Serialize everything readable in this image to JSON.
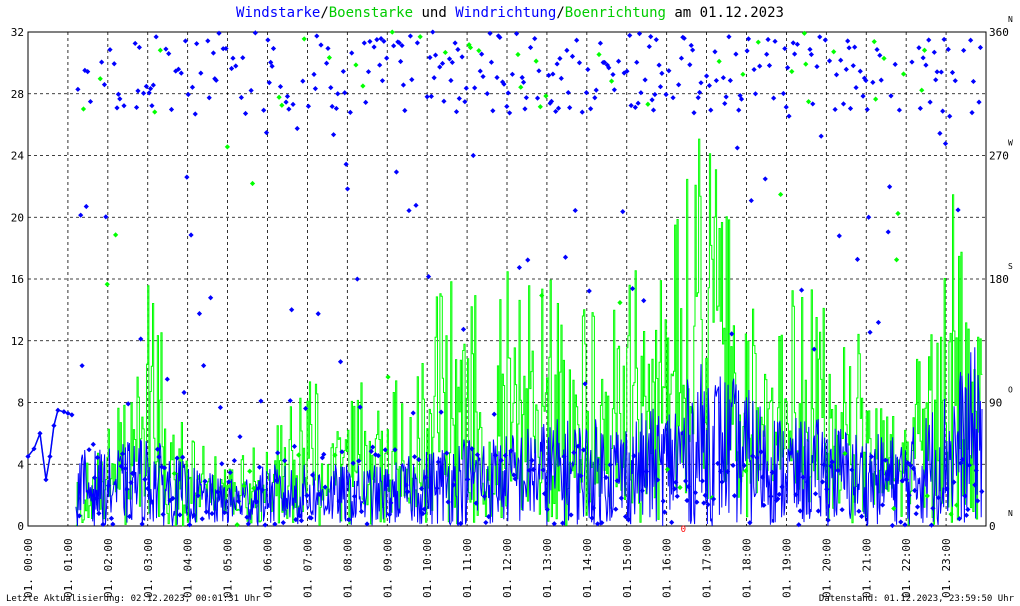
{
  "chart_data": {
    "type": "line",
    "title_parts": [
      {
        "text": "Windstarke",
        "color": "#0000ff"
      },
      {
        "text": "/",
        "color": "#000000"
      },
      {
        "text": "Boenstarke",
        "color": "#00cc00"
      },
      {
        "text": " und ",
        "color": "#000000"
      },
      {
        "text": "Windrichtung",
        "color": "#0000ff"
      },
      {
        "text": "/",
        "color": "#000000"
      },
      {
        "text": "Boenrichtung",
        "color": "#00cc00"
      },
      {
        "text": " am 01.12.2023",
        "color": "#000000"
      }
    ],
    "y_left": {
      "min": 0,
      "max": 32,
      "ticks": [
        "0",
        "4",
        "8",
        "12",
        "16",
        "20",
        "24",
        "28",
        "32"
      ]
    },
    "y_right": {
      "min": 0,
      "max": 360,
      "ticks": [
        "0",
        "90",
        "180",
        "270",
        "360"
      ],
      "compass": [
        "N",
        "O",
        "S",
        "W",
        "N"
      ]
    },
    "x_ticks": [
      "01. 00:00",
      "01. 01:00",
      "01. 02:00",
      "01. 03:00",
      "01. 04:00",
      "01. 05:00",
      "01. 06:00",
      "01. 07:00",
      "01. 08:00",
      "01. 09:00",
      "01. 10:00",
      "01. 11:00",
      "01. 12:00",
      "01. 13:00",
      "01. 14:00",
      "01. 15:00",
      "01. 16:00",
      "01. 17:00",
      "01. 18:00",
      "01. 19:00",
      "01. 20:00",
      "01. 21:00",
      "01. 22:00",
      "01. 23:00"
    ],
    "grid": true,
    "colors": {
      "wind": "#0000ff",
      "gust": "#00ff00",
      "marker": "#ff0000"
    },
    "gust_envelope": [
      [
        1.2,
        4
      ],
      [
        1.8,
        6
      ],
      [
        2.2,
        7.5
      ],
      [
        2.8,
        10
      ],
      [
        3.0,
        18
      ],
      [
        3.5,
        10
      ],
      [
        4.0,
        6
      ],
      [
        4.5,
        5
      ],
      [
        5.0,
        4
      ],
      [
        5.5,
        5
      ],
      [
        6.0,
        6
      ],
      [
        6.5,
        8
      ],
      [
        7.0,
        10
      ],
      [
        7.5,
        8
      ],
      [
        8.0,
        10
      ],
      [
        8.5,
        9
      ],
      [
        9.0,
        9
      ],
      [
        9.5,
        10
      ],
      [
        10.0,
        13
      ],
      [
        10.5,
        18
      ],
      [
        11.0,
        17
      ],
      [
        11.5,
        16
      ],
      [
        12.0,
        18
      ],
      [
        12.5,
        16
      ],
      [
        13.0,
        17
      ],
      [
        13.5,
        15
      ],
      [
        14.0,
        14
      ],
      [
        14.5,
        17
      ],
      [
        15.0,
        18
      ],
      [
        15.5,
        19
      ],
      [
        16.0,
        20
      ],
      [
        16.5,
        23
      ],
      [
        16.8,
        26
      ],
      [
        17.0,
        28
      ],
      [
        17.3,
        22
      ],
      [
        17.6,
        21
      ],
      [
        18.0,
        18
      ],
      [
        18.5,
        15
      ],
      [
        19.0,
        15
      ],
      [
        19.5,
        17
      ],
      [
        20.0,
        15
      ],
      [
        20.5,
        13
      ],
      [
        21.0,
        12
      ],
      [
        21.5,
        11
      ],
      [
        22.0,
        10
      ],
      [
        22.5,
        13
      ],
      [
        22.9,
        15
      ],
      [
        23.2,
        23
      ],
      [
        23.5,
        14
      ],
      [
        23.8,
        15
      ]
    ],
    "wind_envelope": [
      [
        0.0,
        4.5
      ],
      [
        0.3,
        5.5
      ],
      [
        0.5,
        6.5
      ],
      [
        0.8,
        7.5
      ],
      [
        1.0,
        7.3
      ],
      [
        1.2,
        5
      ],
      [
        2.0,
        5
      ],
      [
        3.0,
        6
      ],
      [
        4.0,
        4
      ],
      [
        5.0,
        3
      ],
      [
        6.0,
        4
      ],
      [
        7.0,
        4
      ],
      [
        8.0,
        4
      ],
      [
        9.0,
        4
      ],
      [
        10.0,
        5
      ],
      [
        11.0,
        6
      ],
      [
        12.0,
        6
      ],
      [
        13.0,
        7
      ],
      [
        14.0,
        7
      ],
      [
        15.0,
        7
      ],
      [
        16.0,
        8
      ],
      [
        17.0,
        11
      ],
      [
        18.0,
        9
      ],
      [
        19.0,
        7
      ],
      [
        20.0,
        7
      ],
      [
        21.0,
        6
      ],
      [
        22.0,
        6
      ],
      [
        23.0,
        9
      ],
      [
        23.8,
        12
      ]
    ]
  }
}
